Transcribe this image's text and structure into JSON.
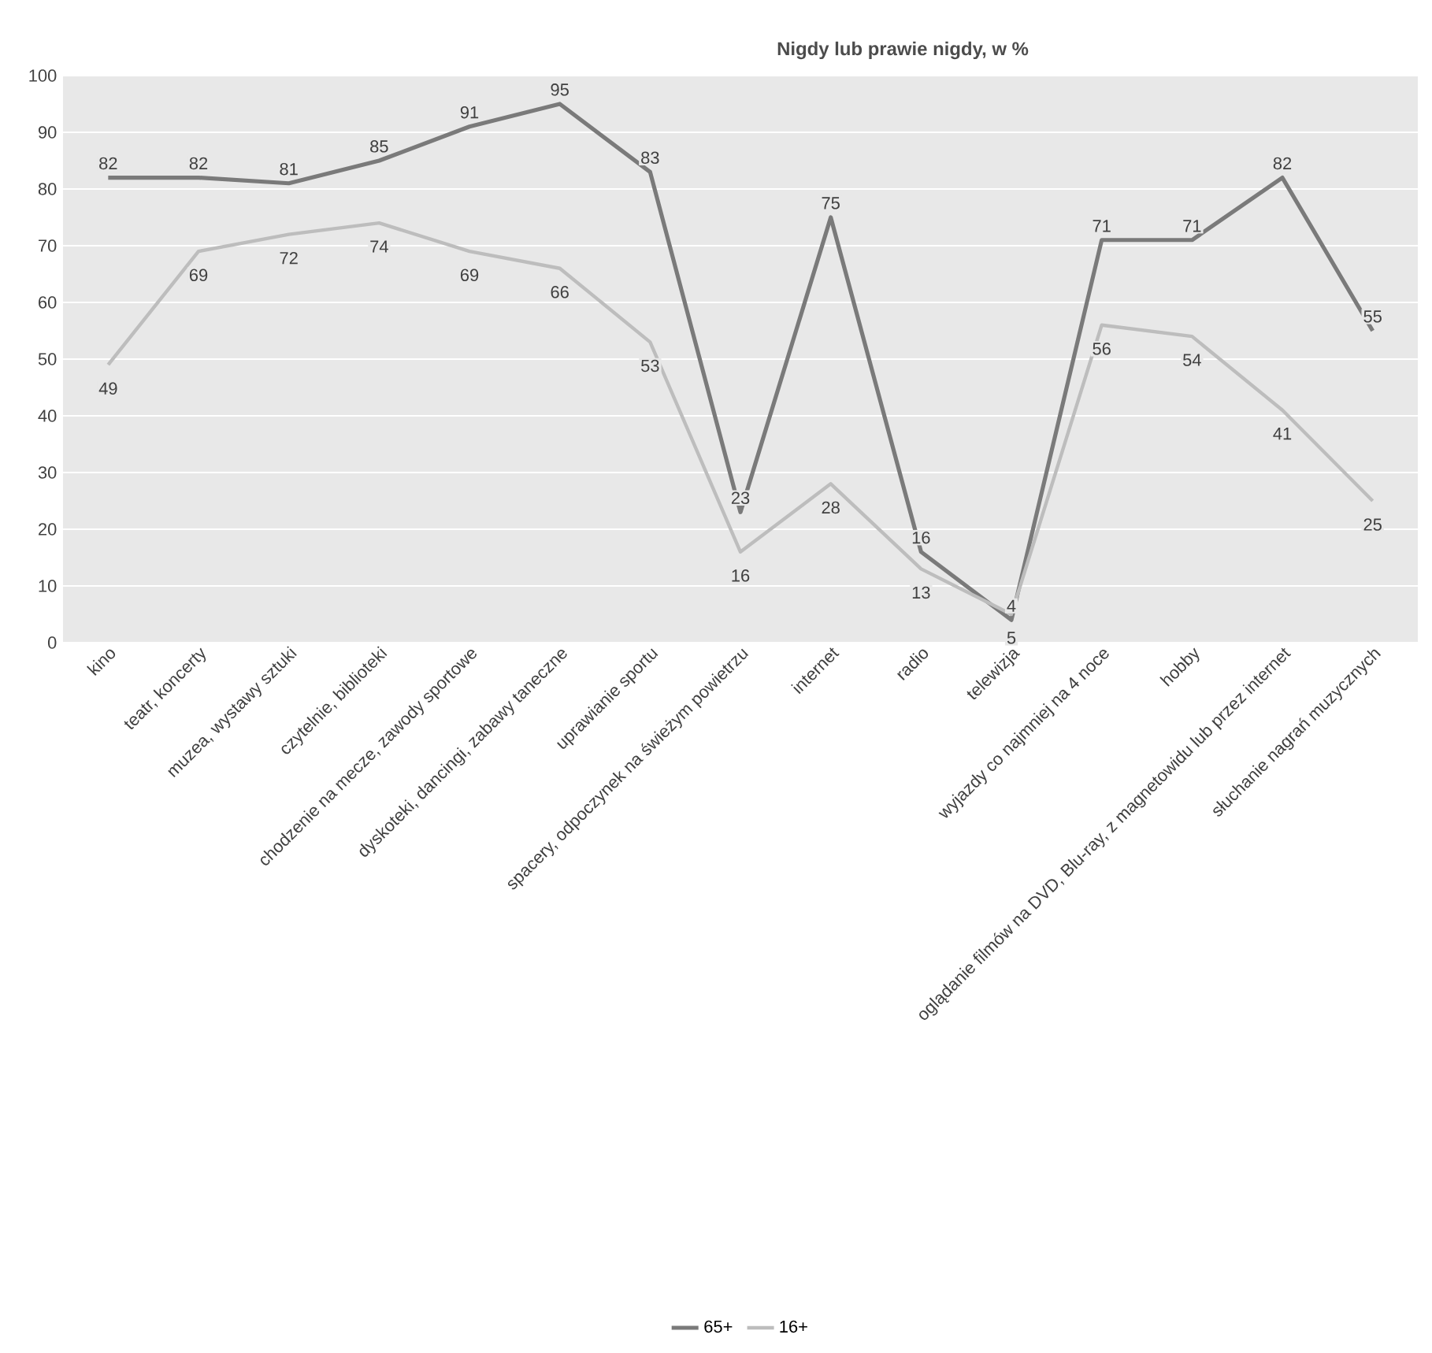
{
  "chart_data": {
    "type": "line",
    "title": "Nigdy lub prawie nigdy, w %",
    "categories": [
      "kino",
      "teatr, koncerty",
      "muzea, wystawy sztuki",
      "czytelnie, biblioteki",
      "chodzenie na mecze, zawody sportowe",
      "dyskoteki, dancingi, zabawy taneczne",
      "uprawianie sportu",
      "spacery, odpoczynek na świeżym powietrzu",
      "internet",
      "radio",
      "telewizja",
      "wyjazdy co najmniej na 4 noce",
      "hobby",
      "oglądanie filmów na DVD, Blu-ray, z magnetowidu lub przez internet",
      "słuchanie nagrań muzycznych"
    ],
    "series": [
      {
        "name": "65+",
        "color": "#7a7a7a",
        "values": [
          82,
          82,
          81,
          85,
          91,
          95,
          83,
          23,
          75,
          16,
          4,
          71,
          71,
          82,
          55
        ]
      },
      {
        "name": "16+",
        "color": "#bdbdbd",
        "values": [
          49,
          69,
          72,
          74,
          69,
          66,
          53,
          16,
          28,
          13,
          5,
          56,
          54,
          41,
          25
        ]
      }
    ],
    "ylim": [
      0,
      100
    ],
    "yticks": [
      0,
      10,
      20,
      30,
      40,
      50,
      60,
      70,
      80,
      90,
      100
    ],
    "grid": "y",
    "legend": "bottom",
    "marker": "none",
    "line_style": "solid",
    "data_labels": true
  }
}
